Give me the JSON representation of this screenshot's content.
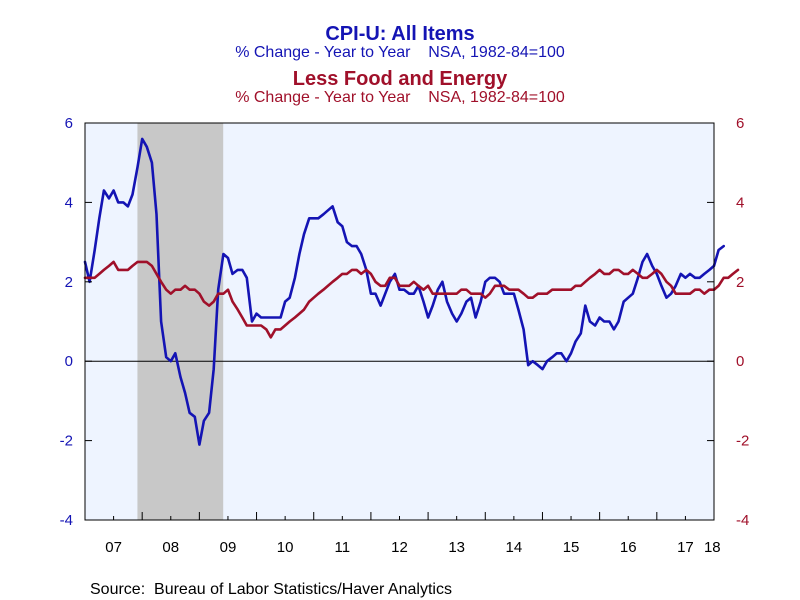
{
  "chart_data": {
    "type": "line",
    "titles": [
      {
        "text": "CPI-U: All Items",
        "color": "#1414b4"
      },
      {
        "text": "% Change - Year to Year    NSA, 1982-84=100",
        "color": "#1414b4"
      },
      {
        "text": "Less Food and Energy",
        "color": "#a0102a"
      },
      {
        "text": "% Change - Year to Year    NSA, 1982-84=100",
        "color": "#a0102a"
      }
    ],
    "source": "Source:  Bureau of Labor Statistics/Haver Analytics",
    "x_tick_labels": [
      "07",
      "08",
      "09",
      "10",
      "11",
      "12",
      "13",
      "14",
      "15",
      "16",
      "17",
      "18"
    ],
    "y_left": {
      "ticks": [
        "6",
        "4",
        "2",
        "0",
        "-2",
        "-4"
      ],
      "min": -4,
      "max": 6,
      "color": "#1414b4"
    },
    "y_right": {
      "ticks": [
        "6",
        "4",
        "2",
        "0",
        "-2",
        "-4"
      ],
      "min": -4,
      "max": 6,
      "color": "#a0102a"
    },
    "x_range": [
      2007.0,
      2018.0
    ],
    "recession": {
      "start": 2007.917,
      "end": 2009.417,
      "color": "#c8c8c8"
    },
    "plot_background": "#eef4ff",
    "series": [
      {
        "color": "#1414b4",
        "points": [
          [
            2007.0,
            2.5
          ],
          [
            2007.08,
            2.0
          ],
          [
            2007.17,
            2.8
          ],
          [
            2007.25,
            3.6
          ],
          [
            2007.33,
            4.3
          ],
          [
            2007.42,
            4.1
          ],
          [
            2007.5,
            4.3
          ],
          [
            2007.58,
            4.0
          ],
          [
            2007.67,
            4.0
          ],
          [
            2007.75,
            3.9
          ],
          [
            2007.83,
            4.2
          ],
          [
            2007.92,
            4.9
          ],
          [
            2008.0,
            5.6
          ],
          [
            2008.08,
            5.4
          ],
          [
            2008.17,
            5.0
          ],
          [
            2008.25,
            3.7
          ],
          [
            2008.33,
            1.0
          ],
          [
            2008.42,
            0.1
          ],
          [
            2008.5,
            0.0
          ],
          [
            2008.58,
            0.2
          ],
          [
            2008.67,
            -0.4
          ],
          [
            2008.75,
            -0.8
          ],
          [
            2008.83,
            -1.3
          ],
          [
            2008.92,
            -1.4
          ],
          [
            2009.0,
            -2.1
          ],
          [
            2009.08,
            -1.5
          ],
          [
            2009.17,
            -1.3
          ],
          [
            2009.25,
            -0.2
          ],
          [
            2009.33,
            1.8
          ],
          [
            2009.42,
            2.7
          ],
          [
            2009.5,
            2.6
          ],
          [
            2009.58,
            2.2
          ],
          [
            2009.67,
            2.3
          ],
          [
            2009.75,
            2.3
          ],
          [
            2009.83,
            2.1
          ],
          [
            2009.92,
            1.0
          ],
          [
            2010.0,
            1.2
          ],
          [
            2010.08,
            1.1
          ],
          [
            2010.17,
            1.1
          ],
          [
            2010.25,
            1.1
          ],
          [
            2010.33,
            1.1
          ],
          [
            2010.42,
            1.1
          ],
          [
            2010.5,
            1.5
          ],
          [
            2010.58,
            1.6
          ],
          [
            2010.67,
            2.1
          ],
          [
            2010.75,
            2.7
          ],
          [
            2010.83,
            3.2
          ],
          [
            2010.92,
            3.6
          ],
          [
            2011.0,
            3.6
          ],
          [
            2011.08,
            3.6
          ],
          [
            2011.17,
            3.7
          ],
          [
            2011.25,
            3.8
          ],
          [
            2011.33,
            3.9
          ],
          [
            2011.42,
            3.5
          ],
          [
            2011.5,
            3.4
          ],
          [
            2011.58,
            3.0
          ],
          [
            2011.67,
            2.9
          ],
          [
            2011.75,
            2.9
          ],
          [
            2011.83,
            2.7
          ],
          [
            2011.92,
            2.3
          ],
          [
            2012.0,
            1.7
          ],
          [
            2012.08,
            1.7
          ],
          [
            2012.17,
            1.4
          ],
          [
            2012.25,
            1.7
          ],
          [
            2012.33,
            2.0
          ],
          [
            2012.42,
            2.2
          ],
          [
            2012.5,
            1.8
          ],
          [
            2012.58,
            1.8
          ],
          [
            2012.67,
            1.7
          ],
          [
            2012.75,
            1.7
          ],
          [
            2012.83,
            1.9
          ],
          [
            2012.92,
            1.5
          ],
          [
            2013.0,
            1.1
          ],
          [
            2013.08,
            1.4
          ],
          [
            2013.17,
            1.8
          ],
          [
            2013.25,
            2.0
          ],
          [
            2013.33,
            1.5
          ],
          [
            2013.42,
            1.2
          ],
          [
            2013.5,
            1.0
          ],
          [
            2013.58,
            1.2
          ],
          [
            2013.67,
            1.5
          ],
          [
            2013.75,
            1.6
          ],
          [
            2013.83,
            1.1
          ],
          [
            2013.92,
            1.5
          ],
          [
            2014.0,
            2.0
          ],
          [
            2014.08,
            2.1
          ],
          [
            2014.17,
            2.1
          ],
          [
            2014.25,
            2.0
          ],
          [
            2014.33,
            1.7
          ],
          [
            2014.42,
            1.7
          ],
          [
            2014.5,
            1.7
          ],
          [
            2014.58,
            1.3
          ],
          [
            2014.67,
            0.8
          ],
          [
            2014.75,
            -0.1
          ],
          [
            2014.83,
            0.0
          ],
          [
            2014.92,
            -0.1
          ],
          [
            2015.0,
            -0.2
          ],
          [
            2015.08,
            0.0
          ],
          [
            2015.17,
            0.1
          ],
          [
            2015.25,
            0.2
          ],
          [
            2015.33,
            0.2
          ],
          [
            2015.42,
            0.0
          ],
          [
            2015.5,
            0.2
          ],
          [
            2015.58,
            0.5
          ],
          [
            2015.67,
            0.7
          ],
          [
            2015.75,
            1.4
          ],
          [
            2015.83,
            1.0
          ],
          [
            2015.92,
            0.9
          ],
          [
            2016.0,
            1.1
          ],
          [
            2016.08,
            1.0
          ],
          [
            2016.17,
            1.0
          ],
          [
            2016.25,
            0.8
          ],
          [
            2016.33,
            1.0
          ],
          [
            2016.42,
            1.5
          ],
          [
            2016.5,
            1.6
          ],
          [
            2016.58,
            1.7
          ],
          [
            2016.67,
            2.1
          ],
          [
            2016.75,
            2.5
          ],
          [
            2016.83,
            2.7
          ],
          [
            2016.92,
            2.4
          ],
          [
            2017.0,
            2.2
          ],
          [
            2017.08,
            1.9
          ],
          [
            2017.17,
            1.6
          ],
          [
            2017.25,
            1.7
          ],
          [
            2017.33,
            1.9
          ],
          [
            2017.42,
            2.2
          ],
          [
            2017.5,
            2.1
          ],
          [
            2017.58,
            2.2
          ],
          [
            2017.67,
            2.1
          ],
          [
            2017.75,
            2.1
          ],
          [
            2017.83,
            2.2
          ],
          [
            2017.92,
            2.3
          ],
          [
            2018.0,
            2.4
          ],
          [
            2018.08,
            2.8
          ],
          [
            2018.17,
            2.9
          ]
        ]
      },
      {
        "color": "#a0102a",
        "points": [
          [
            2007.0,
            2.1
          ],
          [
            2007.08,
            2.1
          ],
          [
            2007.17,
            2.1
          ],
          [
            2007.25,
            2.2
          ],
          [
            2007.33,
            2.3
          ],
          [
            2007.42,
            2.4
          ],
          [
            2007.5,
            2.5
          ],
          [
            2007.58,
            2.3
          ],
          [
            2007.67,
            2.3
          ],
          [
            2007.75,
            2.3
          ],
          [
            2007.83,
            2.4
          ],
          [
            2007.92,
            2.5
          ],
          [
            2008.0,
            2.5
          ],
          [
            2008.08,
            2.5
          ],
          [
            2008.17,
            2.4
          ],
          [
            2008.25,
            2.2
          ],
          [
            2008.33,
            2.0
          ],
          [
            2008.42,
            1.8
          ],
          [
            2008.5,
            1.7
          ],
          [
            2008.58,
            1.8
          ],
          [
            2008.67,
            1.8
          ],
          [
            2008.75,
            1.9
          ],
          [
            2008.83,
            1.8
          ],
          [
            2008.92,
            1.8
          ],
          [
            2009.0,
            1.7
          ],
          [
            2009.08,
            1.5
          ],
          [
            2009.17,
            1.4
          ],
          [
            2009.25,
            1.5
          ],
          [
            2009.33,
            1.7
          ],
          [
            2009.42,
            1.7
          ],
          [
            2009.5,
            1.8
          ],
          [
            2009.58,
            1.5
          ],
          [
            2009.67,
            1.3
          ],
          [
            2009.75,
            1.1
          ],
          [
            2009.83,
            0.9
          ],
          [
            2009.92,
            0.9
          ],
          [
            2010.0,
            0.9
          ],
          [
            2010.08,
            0.9
          ],
          [
            2010.17,
            0.8
          ],
          [
            2010.25,
            0.6
          ],
          [
            2010.33,
            0.8
          ],
          [
            2010.42,
            0.8
          ],
          [
            2010.5,
            0.9
          ],
          [
            2010.58,
            1.0
          ],
          [
            2010.67,
            1.1
          ],
          [
            2010.75,
            1.2
          ],
          [
            2010.83,
            1.3
          ],
          [
            2010.92,
            1.5
          ],
          [
            2011.0,
            1.6
          ],
          [
            2011.08,
            1.7
          ],
          [
            2011.17,
            1.8
          ],
          [
            2011.25,
            1.9
          ],
          [
            2011.33,
            2.0
          ],
          [
            2011.42,
            2.1
          ],
          [
            2011.5,
            2.2
          ],
          [
            2011.58,
            2.2
          ],
          [
            2011.67,
            2.3
          ],
          [
            2011.75,
            2.3
          ],
          [
            2011.83,
            2.2
          ],
          [
            2011.92,
            2.3
          ],
          [
            2012.0,
            2.2
          ],
          [
            2012.08,
            2.0
          ],
          [
            2012.17,
            1.9
          ],
          [
            2012.25,
            1.9
          ],
          [
            2012.33,
            2.1
          ],
          [
            2012.42,
            2.1
          ],
          [
            2012.5,
            1.9
          ],
          [
            2012.58,
            1.9
          ],
          [
            2012.67,
            1.9
          ],
          [
            2012.75,
            2.0
          ],
          [
            2012.83,
            1.9
          ],
          [
            2012.92,
            1.8
          ],
          [
            2013.0,
            1.9
          ],
          [
            2013.08,
            1.7
          ],
          [
            2013.17,
            1.7
          ],
          [
            2013.25,
            1.7
          ],
          [
            2013.33,
            1.7
          ],
          [
            2013.42,
            1.7
          ],
          [
            2013.5,
            1.7
          ],
          [
            2013.58,
            1.8
          ],
          [
            2013.67,
            1.8
          ],
          [
            2013.75,
            1.7
          ],
          [
            2013.83,
            1.7
          ],
          [
            2013.92,
            1.7
          ],
          [
            2014.0,
            1.6
          ],
          [
            2014.08,
            1.7
          ],
          [
            2014.17,
            1.9
          ],
          [
            2014.25,
            1.9
          ],
          [
            2014.33,
            1.9
          ],
          [
            2014.42,
            1.8
          ],
          [
            2014.5,
            1.8
          ],
          [
            2014.58,
            1.8
          ],
          [
            2014.67,
            1.7
          ],
          [
            2014.75,
            1.6
          ],
          [
            2014.83,
            1.6
          ],
          [
            2014.92,
            1.7
          ],
          [
            2015.0,
            1.7
          ],
          [
            2015.08,
            1.7
          ],
          [
            2015.17,
            1.8
          ],
          [
            2015.25,
            1.8
          ],
          [
            2015.33,
            1.8
          ],
          [
            2015.42,
            1.8
          ],
          [
            2015.5,
            1.8
          ],
          [
            2015.58,
            1.9
          ],
          [
            2015.67,
            1.9
          ],
          [
            2015.75,
            2.0
          ],
          [
            2015.83,
            2.1
          ],
          [
            2015.92,
            2.2
          ],
          [
            2016.0,
            2.3
          ],
          [
            2016.08,
            2.2
          ],
          [
            2016.17,
            2.2
          ],
          [
            2016.25,
            2.3
          ],
          [
            2016.33,
            2.3
          ],
          [
            2016.42,
            2.2
          ],
          [
            2016.5,
            2.2
          ],
          [
            2016.58,
            2.3
          ],
          [
            2016.67,
            2.2
          ],
          [
            2016.75,
            2.1
          ],
          [
            2016.83,
            2.1
          ],
          [
            2016.92,
            2.2
          ],
          [
            2017.0,
            2.3
          ],
          [
            2017.08,
            2.2
          ],
          [
            2017.17,
            2.0
          ],
          [
            2017.25,
            1.9
          ],
          [
            2017.33,
            1.7
          ],
          [
            2017.42,
            1.7
          ],
          [
            2017.5,
            1.7
          ],
          [
            2017.58,
            1.7
          ],
          [
            2017.67,
            1.8
          ],
          [
            2017.75,
            1.8
          ],
          [
            2017.83,
            1.7
          ],
          [
            2017.92,
            1.8
          ],
          [
            2018.0,
            1.8
          ],
          [
            2018.08,
            1.9
          ],
          [
            2018.17,
            2.1
          ],
          [
            2018.25,
            2.1
          ],
          [
            2018.33,
            2.2
          ],
          [
            2018.42,
            2.3
          ]
        ]
      }
    ]
  }
}
